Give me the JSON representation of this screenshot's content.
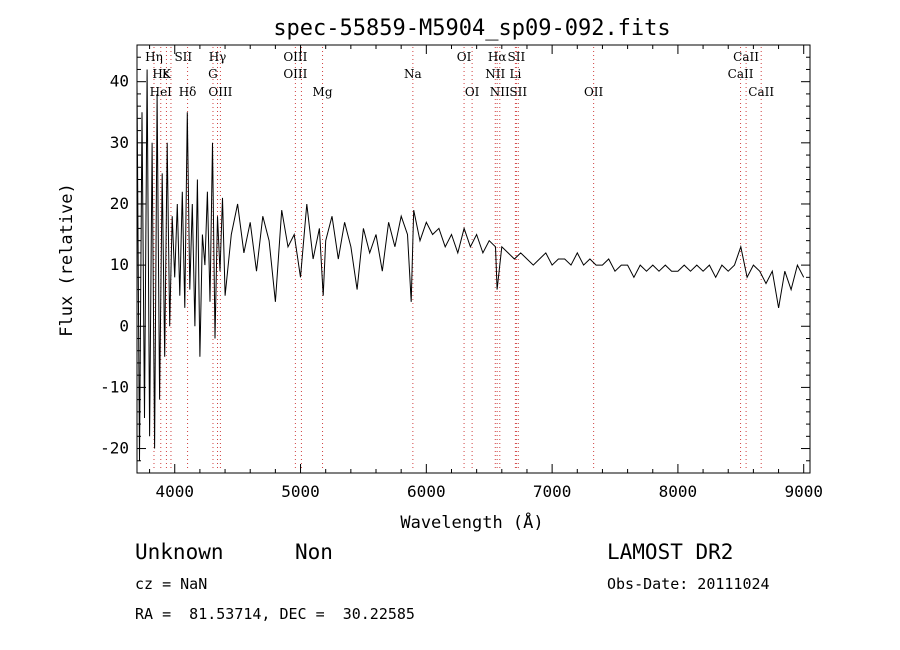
{
  "chart_data": {
    "type": "line",
    "title": "spec-55859-M5904_sp09-092.fits",
    "xlabel": "Wavelength (Å)",
    "ylabel": "Flux (relative)",
    "xlim": [
      3700,
      9050
    ],
    "ylim": [
      -24,
      46
    ],
    "xticks": [
      4000,
      5000,
      6000,
      7000,
      8000,
      9000
    ],
    "yticks": [
      -20,
      -10,
      0,
      10,
      20,
      30,
      40
    ],
    "grid": false,
    "legend": "none",
    "colors": {
      "spectrum": "#000000",
      "line_marker": "#d04040"
    },
    "series": [
      {
        "x": [
          3700,
          3720,
          3740,
          3760,
          3780,
          3800,
          3820,
          3840,
          3860,
          3880,
          3900,
          3920,
          3940,
          3960,
          3980,
          4000,
          4020,
          4040,
          4060,
          4080,
          4100,
          4120,
          4140,
          4160,
          4180,
          4200,
          4220,
          4240,
          4260,
          4280,
          4300,
          4320,
          4340,
          4360,
          4380,
          4400,
          4450,
          4500,
          4550,
          4600,
          4650,
          4700,
          4750,
          4800,
          4850,
          4900,
          4950,
          5000,
          5050,
          5100,
          5150,
          5180,
          5200,
          5250,
          5300,
          5350,
          5400,
          5450,
          5500,
          5550,
          5600,
          5650,
          5700,
          5750,
          5800,
          5850,
          5880,
          5900,
          5950,
          6000,
          6050,
          6100,
          6150,
          6200,
          6250,
          6300,
          6350,
          6400,
          6450,
          6500,
          6550,
          6563,
          6600,
          6650,
          6700,
          6750,
          6800,
          6850,
          6900,
          6950,
          7000,
          7050,
          7100,
          7150,
          7200,
          7250,
          7300,
          7350,
          7400,
          7450,
          7500,
          7550,
          7600,
          7650,
          7700,
          7750,
          7800,
          7850,
          7900,
          7950,
          8000,
          8050,
          8100,
          8150,
          8200,
          8250,
          8300,
          8350,
          8400,
          8450,
          8500,
          8550,
          8600,
          8650,
          8700,
          8750,
          8800,
          8850,
          8900,
          8950,
          9000
        ],
        "values": [
          40,
          -22,
          35,
          -15,
          42,
          -18,
          30,
          -20,
          38,
          -12,
          25,
          -5,
          30,
          0,
          18,
          8,
          20,
          5,
          22,
          3,
          35,
          6,
          20,
          0,
          24,
          -5,
          15,
          10,
          22,
          4,
          30,
          -2,
          18,
          9,
          21,
          5,
          15,
          20,
          12,
          17,
          9,
          18,
          14,
          4,
          19,
          13,
          15,
          8,
          20,
          11,
          16,
          5,
          14,
          18,
          11,
          17,
          13,
          6,
          16,
          12,
          15,
          9,
          17,
          13,
          18,
          15,
          4,
          19,
          14,
          17,
          15,
          16,
          13,
          15,
          12,
          16,
          13,
          15,
          12,
          14,
          13,
          6,
          13,
          12,
          11,
          12,
          11,
          10,
          11,
          12,
          10,
          11,
          11,
          10,
          12,
          10,
          11,
          10,
          10,
          11,
          9,
          10,
          10,
          8,
          10,
          9,
          10,
          9,
          10,
          9,
          9,
          10,
          9,
          10,
          9,
          10,
          8,
          10,
          9,
          10,
          13,
          8,
          10,
          9,
          7,
          9,
          3,
          9,
          6,
          10,
          8
        ]
      }
    ],
    "lines_top": [
      {
        "label": "Hη",
        "x": 3835
      },
      {
        "label": "SII",
        "x": 4068
      },
      {
        "label": "Hγ",
        "x": 4340
      },
      {
        "label": "OIII",
        "x": 4959
      },
      {
        "label": "OI",
        "x": 6300
      },
      {
        "label": "Hα",
        "x": 6563
      },
      {
        "label": "SII",
        "x": 6716
      },
      {
        "label": "CaII",
        "x": 8542
      }
    ],
    "lines_mid": [
      {
        "label": "Hε",
        "x": 3889
      },
      {
        "label": "K",
        "x": 3934
      },
      {
        "label": "G",
        "x": 4304
      },
      {
        "label": "OIII",
        "x": 4959
      },
      {
        "label": "Na",
        "x": 5893
      },
      {
        "label": "NII",
        "x": 6548
      },
      {
        "label": "Li",
        "x": 6708
      },
      {
        "label": "CaII",
        "x": 8498
      }
    ],
    "lines_bottom": [
      {
        "label": "HeI",
        "x": 3889
      },
      {
        "label": "Hδ",
        "x": 4102
      },
      {
        "label": "OIII",
        "x": 4363
      },
      {
        "label": "Mg",
        "x": 5175
      },
      {
        "label": "OI",
        "x": 6364
      },
      {
        "label": "NII",
        "x": 6584
      },
      {
        "label": "SII",
        "x": 6731
      },
      {
        "label": "OII",
        "x": 7330
      },
      {
        "label": "CaII",
        "x": 8662
      }
    ],
    "marker_x": [
      3835,
      3889,
      3934,
      3970,
      4102,
      4304,
      4340,
      4363,
      4959,
      5007,
      5175,
      5893,
      6300,
      6364,
      6548,
      6563,
      6584,
      6708,
      6716,
      6731,
      7330,
      8498,
      8542,
      8662
    ]
  },
  "info": {
    "class": "Unknown",
    "subclass": "Non",
    "survey": "LAMOST DR2",
    "cz": "cz = NaN",
    "obs_date": "Obs-Date: 20111024",
    "coords": "RA =  81.53714, DEC =  30.22585"
  }
}
